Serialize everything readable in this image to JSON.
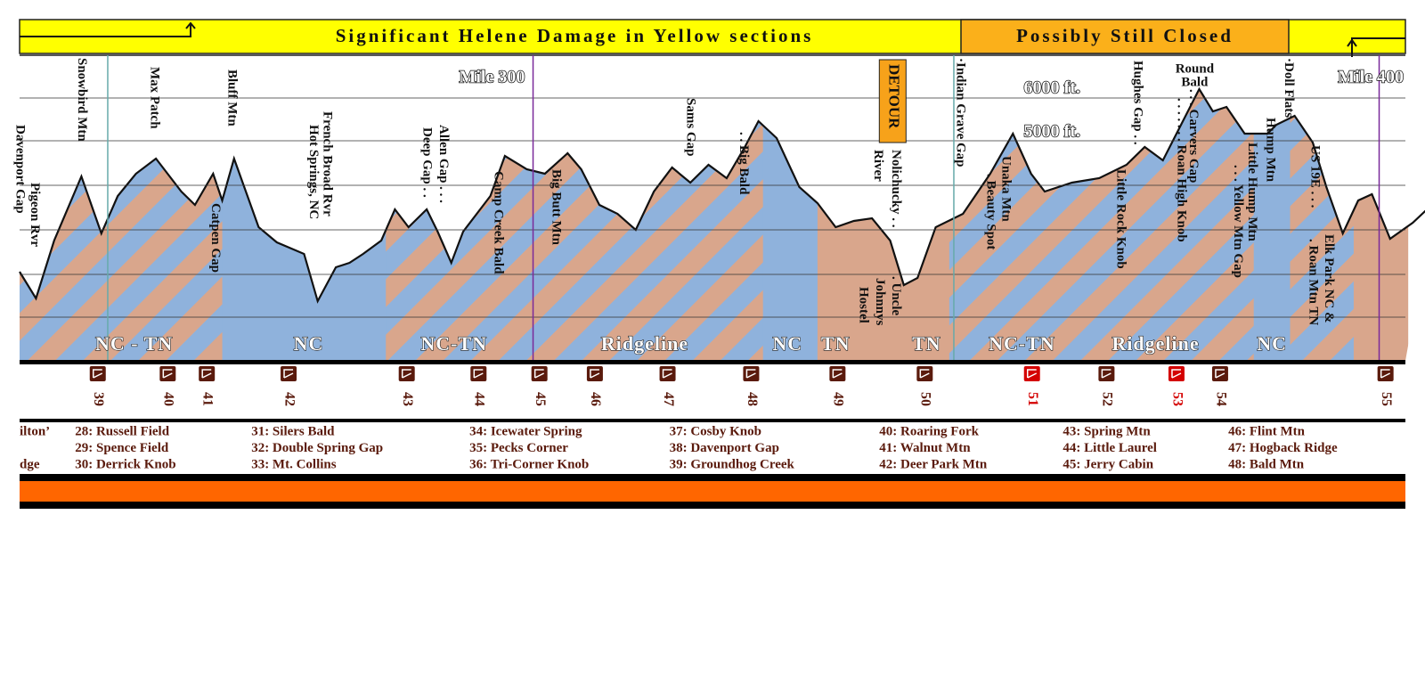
{
  "banner": {
    "left": "Significant Helene Damage in Yellow sections",
    "right": "Possibly Still Closed"
  },
  "mile_labels": [
    "Mile  300",
    "Mile  400"
  ],
  "elevation_labels": [
    "6000  ft.",
    "5000  ft."
  ],
  "detour": "DETOUR",
  "places": [
    "Davenport Gap",
    "Pigeon Rvr",
    "Snowbird Mtn",
    "Max Patch",
    "Bluff Mtn",
    "Catpen Gap",
    "French Broad Rvr",
    "Hot Springs, NC",
    "Allen Gap . . .",
    "Deep Gap . .",
    "Camp Creek Bald",
    "Big Butt Mtn",
    "Sams Gap",
    ". . Big Bald",
    "Nolichucky . .",
    "River",
    ". Uncle",
    "Johnnys",
    "Hostel",
    "·Indian Grave Gap",
    "Unaka Mtn",
    ". Beauty Spot",
    "Hughes Gap . .",
    "Little Rock Knob",
    "Round",
    "Bald",
    ". . . Carvers Gap",
    ". . . . . . . Roan High Knob",
    "Little Hump Mtn",
    ". . . Yellow Mtn Gap",
    "Hump Mtn",
    "·Doll Flats",
    "US 19E . . .",
    "Elk Park NC &",
    ". Roan Mtn TN"
  ],
  "regions": [
    "NC - TN",
    "NC",
    "NC-TN",
    "Ridgeline",
    "NC",
    "TN",
    "TN",
    "NC-TN",
    "Ridgeline",
    "NC"
  ],
  "shelters": [
    {
      "number": 39,
      "color": "#5a1a0c"
    },
    {
      "number": 40,
      "color": "#5a1a0c"
    },
    {
      "number": 41,
      "color": "#5a1a0c"
    },
    {
      "number": 42,
      "color": "#5a1a0c"
    },
    {
      "number": 43,
      "color": "#5a1a0c"
    },
    {
      "number": 44,
      "color": "#5a1a0c"
    },
    {
      "number": 45,
      "color": "#5a1a0c"
    },
    {
      "number": 46,
      "color": "#5a1a0c"
    },
    {
      "number": 47,
      "color": "#5a1a0c"
    },
    {
      "number": 48,
      "color": "#5a1a0c"
    },
    {
      "number": 49,
      "color": "#5a1a0c"
    },
    {
      "number": 50,
      "color": "#5a1a0c"
    },
    {
      "number": 51,
      "color": "#d40000"
    },
    {
      "number": 52,
      "color": "#5a1a0c"
    },
    {
      "number": 53,
      "color": "#d40000"
    },
    {
      "number": 54,
      "color": "#5a1a0c"
    },
    {
      "number": 55,
      "color": "#5a1a0c"
    }
  ],
  "legend": [
    [
      "ilton’",
      "",
      "dge"
    ],
    [
      "28: Russell Field",
      "29: Spence Field",
      "30: Derrick Knob"
    ],
    [
      "31: Silers Bald",
      "32: Double Spring Gap",
      "33: Mt. Collins"
    ],
    [
      "34: Icewater Spring",
      "35: Pecks Corner",
      "36: Tri-Corner Knob"
    ],
    [
      "37: Cosby Knob",
      "38: Davenport Gap",
      "39: Groundhog Creek"
    ],
    [
      "40: Roaring Fork",
      "41: Walnut Mtn",
      "42: Deer Park Mtn"
    ],
    [
      "43: Spring Mtn",
      "44: Little Laurel",
      "45: Jerry Cabin"
    ],
    [
      "46: Flint Mtn",
      "47: Hogback Ridge",
      "48: Bald Mtn"
    ]
  ]
}
